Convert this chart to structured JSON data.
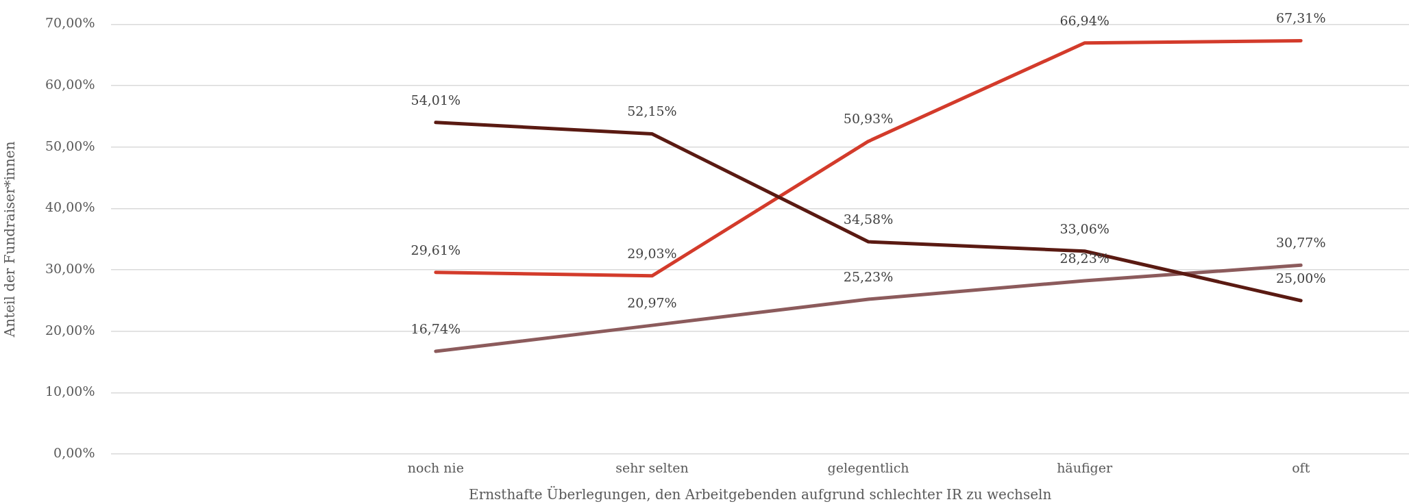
{
  "chart_data": {
    "type": "line",
    "ylabel": "Anteil der Fundraiser*innen",
    "xlabel": "Ernsthafte Überlegungen, den Arbeitgebenden aufgrund schlechter IR zu wechseln",
    "categories": [
      null,
      "noch nie",
      "sehr selten",
      "gelegentlich",
      "häufiger",
      "oft"
    ],
    "series": [
      {
        "color": "#5a1a12",
        "values": [
          null,
          54.01,
          52.15,
          34.58,
          33.06,
          25.0
        ],
        "value_labels": [
          null,
          "54,01%",
          "52,15%",
          "34,58%",
          "33,06%",
          "25,00%"
        ]
      },
      {
        "color": "#d33b2b",
        "values": [
          null,
          29.61,
          29.03,
          50.93,
          66.94,
          67.31
        ],
        "value_labels": [
          null,
          "29,61%",
          "29,03%",
          "50,93%",
          "66,94%",
          "67,31%"
        ]
      },
      {
        "color": "#8c5b5c",
        "values": [
          null,
          16.74,
          20.97,
          25.23,
          28.23,
          30.77
        ],
        "value_labels": [
          null,
          "16,74%",
          "20,97%",
          "25,23%",
          "28,23%",
          "30,77%"
        ]
      }
    ],
    "ylim": [
      0,
      70
    ],
    "yticks": [
      {
        "value": 0,
        "label": "0,00%"
      },
      {
        "value": 10,
        "label": "10,00%"
      },
      {
        "value": 20,
        "label": "20,00%"
      },
      {
        "value": 30,
        "label": "30,00%"
      },
      {
        "value": 40,
        "label": "40,00%"
      },
      {
        "value": 50,
        "label": "50,00%"
      },
      {
        "value": 60,
        "label": "60,00%"
      },
      {
        "value": 70,
        "label": "70,00%"
      }
    ],
    "grid": "y",
    "marker": "none"
  }
}
